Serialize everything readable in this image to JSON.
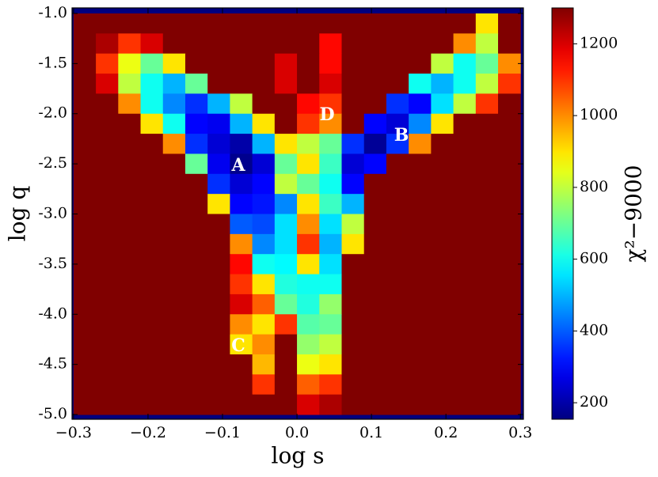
{
  "chart_data": {
    "type": "heatmap",
    "xlabel": "log s",
    "ylabel": "log q",
    "colorbar_label": "χ²−9000",
    "colormap": "jet",
    "background_color": "#00007f",
    "x": [
      -0.285,
      -0.255,
      -0.225,
      -0.195,
      -0.165,
      -0.135,
      -0.105,
      -0.075,
      -0.045,
      -0.015,
      0.015,
      0.045,
      0.075,
      0.105,
      0.135,
      0.165,
      0.195,
      0.225,
      0.255,
      0.285
    ],
    "y": [
      -1.1,
      -1.3,
      -1.5,
      -1.7,
      -1.9,
      -2.1,
      -2.3,
      -2.5,
      -2.7,
      -2.9,
      -3.1,
      -3.3,
      -3.5,
      -3.7,
      -3.9,
      -4.1,
      -4.3,
      -4.5,
      -4.7,
      -4.9
    ],
    "z": [
      [
        1300,
        1300,
        1300,
        1300,
        1300,
        1300,
        1300,
        1300,
        1300,
        1300,
        1300,
        1300,
        1300,
        1300,
        1300,
        1300,
        1300,
        1300,
        900,
        1300
      ],
      [
        1300,
        1250,
        1100,
        1200,
        1300,
        1300,
        1300,
        1300,
        1300,
        1300,
        1300,
        1150,
        1300,
        1300,
        1300,
        1300,
        1300,
        1000,
        800,
        1300
      ],
      [
        1300,
        1100,
        850,
        700,
        900,
        1300,
        1300,
        1300,
        1300,
        1200,
        1300,
        1150,
        1300,
        1300,
        1300,
        1300,
        800,
        600,
        700,
        1000
      ],
      [
        1300,
        1200,
        800,
        600,
        500,
        700,
        1300,
        1300,
        1300,
        1200,
        1300,
        1200,
        1300,
        1300,
        1300,
        600,
        500,
        600,
        800,
        1100
      ],
      [
        1300,
        1300,
        1000,
        600,
        450,
        350,
        500,
        800,
        1300,
        1300,
        1150,
        1100,
        1300,
        1300,
        350,
        300,
        550,
        800,
        1100,
        1300
      ],
      [
        1300,
        1300,
        1300,
        900,
        600,
        300,
        280,
        500,
        900,
        1300,
        1100,
        1000,
        1300,
        300,
        250,
        450,
        900,
        1300,
        1300,
        1300
      ],
      [
        1300,
        1300,
        1300,
        1300,
        1000,
        350,
        250,
        200,
        500,
        900,
        800,
        700,
        350,
        180,
        350,
        1000,
        1300,
        1300,
        1300,
        1300
      ],
      [
        1300,
        1300,
        1300,
        1300,
        1300,
        700,
        280,
        170,
        250,
        700,
        900,
        650,
        250,
        300,
        1300,
        1300,
        1300,
        1300,
        1300,
        1300
      ],
      [
        1300,
        1300,
        1300,
        1300,
        1300,
        1300,
        350,
        250,
        300,
        800,
        700,
        600,
        300,
        1300,
        1300,
        1300,
        1300,
        1300,
        1300,
        1300
      ],
      [
        1300,
        1300,
        1300,
        1300,
        1300,
        1300,
        900,
        300,
        320,
        450,
        900,
        650,
        500,
        1300,
        1300,
        1300,
        1300,
        1300,
        1300,
        1300
      ],
      [
        1300,
        1300,
        1300,
        1300,
        1300,
        1300,
        1300,
        400,
        380,
        550,
        1000,
        550,
        800,
        1300,
        1300,
        1300,
        1300,
        1300,
        1300,
        1300
      ],
      [
        1300,
        1300,
        1300,
        1300,
        1300,
        1300,
        1300,
        1000,
        450,
        550,
        1100,
        500,
        900,
        1300,
        1300,
        1300,
        1300,
        1300,
        1300,
        1300
      ],
      [
        1300,
        1300,
        1300,
        1300,
        1300,
        1300,
        1300,
        1150,
        600,
        580,
        900,
        550,
        1300,
        1300,
        1300,
        1300,
        1300,
        1300,
        1300,
        1300
      ],
      [
        1300,
        1300,
        1300,
        1300,
        1300,
        1300,
        1300,
        1100,
        900,
        620,
        600,
        600,
        1300,
        1300,
        1300,
        1300,
        1300,
        1300,
        1300,
        1300
      ],
      [
        1300,
        1300,
        1300,
        1300,
        1300,
        1300,
        1300,
        1200,
        1050,
        700,
        620,
        750,
        1300,
        1300,
        1300,
        1300,
        1300,
        1300,
        1300,
        1300
      ],
      [
        1300,
        1300,
        1300,
        1300,
        1300,
        1300,
        1300,
        1000,
        900,
        1100,
        680,
        700,
        1300,
        1300,
        1300,
        1300,
        1300,
        1300,
        1300,
        1300
      ],
      [
        1300,
        1300,
        1300,
        1300,
        1300,
        1300,
        1300,
        900,
        1000,
        1300,
        750,
        800,
        1300,
        1300,
        1300,
        1300,
        1300,
        1300,
        1300,
        1300
      ],
      [
        1300,
        1300,
        1300,
        1300,
        1300,
        1300,
        1300,
        1300,
        950,
        1300,
        850,
        900,
        1300,
        1300,
        1300,
        1300,
        1300,
        1300,
        1300,
        1300
      ],
      [
        1300,
        1300,
        1300,
        1300,
        1300,
        1300,
        1300,
        1300,
        1100,
        1300,
        1050,
        1100,
        1300,
        1300,
        1300,
        1300,
        1300,
        1300,
        1300,
        1300
      ],
      [
        1300,
        1300,
        1300,
        1300,
        1300,
        1300,
        1300,
        1300,
        1300,
        1300,
        1200,
        1250,
        1300,
        1300,
        1300,
        1300,
        1300,
        1300,
        1300,
        1300
      ]
    ],
    "xlim": [
      -0.302,
      0.304
    ],
    "ylim": [
      -5.047,
      -0.945
    ],
    "clim": [
      154,
      1300
    ],
    "xticks": [
      {
        "value": -0.3,
        "label": "−0.3"
      },
      {
        "value": -0.2,
        "label": "−0.2"
      },
      {
        "value": -0.1,
        "label": "−0.1"
      },
      {
        "value": 0,
        "label": "0.0"
      },
      0.1,
      0.2,
      0.3
    ],
    "yticks": [
      {
        "value": -1,
        "label": "-1.0"
      },
      -1.5,
      {
        "value": -2,
        "label": "-2.0"
      },
      -2.5,
      {
        "value": -3,
        "label": "-3.0"
      },
      -3.5,
      {
        "value": -4,
        "label": "-4.0"
      },
      -4.5,
      {
        "value": -5,
        "label": "-5.0"
      }
    ],
    "cticks": [
      200,
      400,
      600,
      800,
      1000,
      1200
    ],
    "annotations": [
      "A",
      "B",
      "C",
      "D"
    ]
  }
}
